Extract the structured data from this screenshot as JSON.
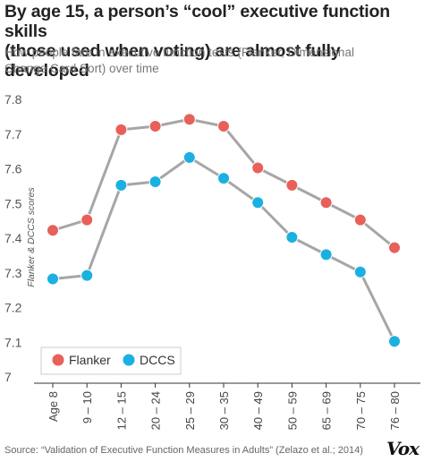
{
  "title_line1": "By age 15, a person’s “cool” executive function skills",
  "title_line2": "(those used when voting) are almost fully developed",
  "subtitle_line1": "How people fare in executive function tests (Flanker, Dimensional",
  "subtitle_line2": "Change Card Sort) over time",
  "source": "Source: “Validation of Executive Function Measures in Adults” (Zelazo et al.; 2014)",
  "logo": "Vox",
  "chart_data": {
    "type": "line",
    "title": "By age 15, a person’s “cool” executive function skills (those used when voting) are almost fully developed",
    "xlabel": "",
    "ylabel": "Flanker & DCCS scores",
    "categories": [
      "Age 8",
      "9 – 10",
      "12 – 15",
      "20 – 24",
      "25 – 29",
      "30 – 35",
      "40 – 49",
      "50 – 59",
      "65 – 69",
      "70 – 75",
      "76 – 80"
    ],
    "ylim": [
      7.0,
      7.8
    ],
    "yticks": [
      7,
      7.1,
      7.2,
      7.3,
      7.4,
      7.5,
      7.6,
      7.7,
      7.8
    ],
    "grid": false,
    "legend_position": "bottom-left",
    "series": [
      {
        "name": "Flanker",
        "color": "#e8605a",
        "values": [
          7.42,
          7.45,
          7.71,
          7.72,
          7.74,
          7.72,
          7.6,
          7.55,
          7.5,
          7.45,
          7.37
        ]
      },
      {
        "name": "DCCS",
        "color": "#1ab0e2",
        "values": [
          7.28,
          7.29,
          7.55,
          7.56,
          7.63,
          7.57,
          7.5,
          7.4,
          7.35,
          7.3,
          7.1
        ]
      }
    ],
    "line_color": "#a6a6a6"
  }
}
